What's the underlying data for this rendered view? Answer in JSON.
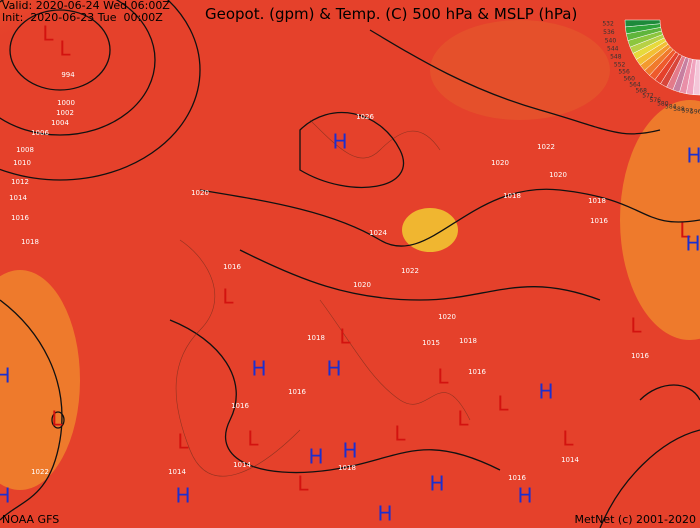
{
  "header": {
    "valid": "Valid: 2020-06-24 Wed 06:00Z",
    "init": "Init:  2020-06-23 Tue  00:00Z",
    "title": "Geopot. (gpm) & Temp. (C) 500 hPa & MSLP (hPa)"
  },
  "footer": {
    "source": "NOAA GFS",
    "credit": "MetNet (c) 2001-2020"
  },
  "legend_labels": [
    "596",
    "592",
    "588",
    "584",
    "580",
    "576",
    "572",
    "568",
    "564",
    "560",
    "556",
    "552",
    "548",
    "544",
    "540",
    "536",
    "532"
  ],
  "pressure_centers": [
    "L",
    "L",
    "L",
    "L",
    "L",
    "L",
    "L",
    "L",
    "L",
    "L",
    "L",
    "L",
    "L",
    "L",
    "L",
    "H",
    "H",
    "H",
    "H",
    "H",
    "H",
    "H",
    "H",
    "H",
    "H",
    "H",
    "H",
    "H",
    "H"
  ],
  "isobar_labels": [
    "994",
    "1000",
    "1002",
    "1004",
    "1006",
    "1008",
    "1010",
    "1012",
    "1014",
    "1016",
    "1018",
    "1020",
    "1026",
    "1020",
    "1022",
    "1020",
    "1018",
    "1018",
    "1016",
    "1024",
    "1022",
    "1020",
    "1016",
    "1018",
    "1020",
    "1015",
    "1018",
    "1016",
    "1016",
    "1016",
    "1014",
    "1014",
    "1018",
    "1016",
    "1014",
    "1022",
    "1016"
  ]
}
